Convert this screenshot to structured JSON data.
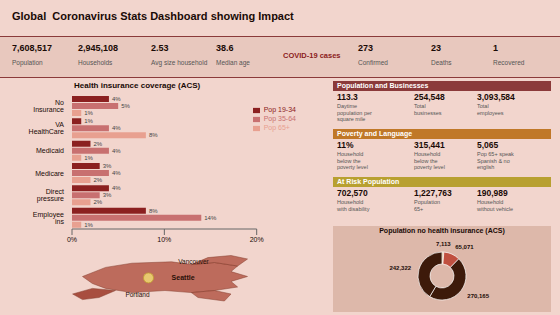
{
  "title": "Global  Coronavirus Stats Dashboard showing Impact",
  "chart_data": [
    {
      "type": "kpi",
      "categories": [
        "Population",
        "Households",
        "Avg size household",
        "Median age"
      ],
      "values": [
        7608517,
        2945108,
        2.53,
        38.6
      ],
      "value_labels": [
        "7,608,517",
        "2,945,108",
        "2.53",
        "38.6"
      ]
    },
    {
      "type": "kpi",
      "title": "COVID-19 cases",
      "categories": [
        "Confirmed",
        "Deaths",
        "Recovered"
      ],
      "values": [
        273,
        23,
        1
      ],
      "value_labels": [
        "273",
        "23",
        "1"
      ]
    },
    {
      "type": "bar",
      "title": "Health insurance coverage (ACS)",
      "orientation": "horizontal",
      "categories": [
        "No Insurance",
        "VA HealthCare",
        "Medicaid",
        "Medicare",
        "Direct pressure",
        "Employee ins"
      ],
      "series": [
        {
          "name": "Pop 19-34",
          "color": "#8b2020",
          "values": [
            4,
            1,
            2,
            3,
            4,
            8
          ],
          "value_labels": [
            "4%",
            "1%",
            "2%",
            "3%",
            "4%",
            "8%"
          ]
        },
        {
          "name": "Pop 35-64",
          "color": "#c87070",
          "values": [
            5,
            4,
            4,
            4,
            3,
            14
          ],
          "value_labels": [
            "5%",
            "4%",
            "4%",
            "4%",
            "3%",
            "14%"
          ]
        },
        {
          "name": "Pop 65+",
          "color": "#e8a090",
          "values": [
            1,
            8,
            1,
            2,
            2,
            1
          ],
          "value_labels": [
            "1%",
            "8%",
            "1%",
            "2%",
            "2%",
            "1%"
          ]
        }
      ],
      "xlim": [
        0,
        20
      ],
      "xticks": [
        {
          "value": 0,
          "label": "0%"
        },
        {
          "value": 10,
          "label": "10%"
        },
        {
          "value": 20,
          "label": "20%"
        }
      ],
      "data_labels": true,
      "legend": "upper right",
      "grid": false
    },
    {
      "type": "stats",
      "title": "Population and Businesses",
      "color": "#8b3a3a",
      "categories": [
        "Daytime\npopulation per\nsquare mile",
        "Total\nbusinesses",
        "Total\nemployees"
      ],
      "values": [
        113.3,
        254548,
        3093584
      ],
      "value_labels": [
        "113.3",
        "254,548",
        "3,093,584"
      ]
    },
    {
      "type": "stats",
      "title": "Poverty and Language",
      "color": "#c07828",
      "categories": [
        "Household\nbelow the\npoverty level",
        "Household\nbelow the\npoverty level",
        "Pop 65+ speak\nSpanish & no\nenglish"
      ],
      "values": [
        11,
        315441,
        5065
      ],
      "value_labels": [
        "11%",
        "315,441",
        "5,065"
      ]
    },
    {
      "type": "stats",
      "title": "At Risk Population",
      "color": "#b8a030",
      "categories": [
        "Household\nwith disability",
        "Population\n65+",
        "Household\nwithout vehicle"
      ],
      "values": [
        702570,
        1227763,
        190989
      ],
      "value_labels": [
        "702,570",
        "1,227,763",
        "190,989"
      ]
    },
    {
      "type": "pie",
      "title": "Population no health insurance (ACS)",
      "values": [
        7113,
        65071,
        270165,
        242322
      ],
      "value_labels": [
        "7,113",
        "65,071",
        "270,165",
        "242,322"
      ],
      "colors": [
        "#c8a060",
        "#c05040",
        "#3d1a0a",
        "#3d1a0a"
      ],
      "data_labels": true
    },
    {
      "type": "map",
      "color": "#b86050",
      "annotations": [
        "Seattle",
        "Vancouver",
        "Portland"
      ]
    }
  ]
}
